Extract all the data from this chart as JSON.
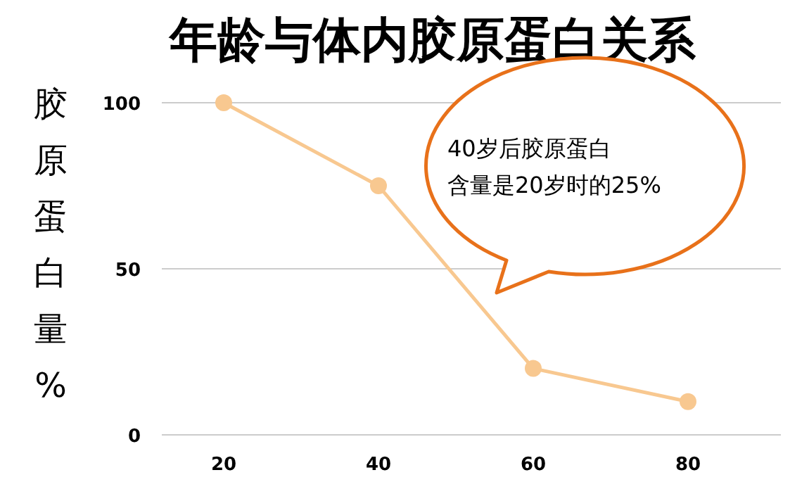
{
  "chart_data": {
    "type": "line",
    "title": "年龄与体内胶原蛋白关系",
    "ylabel": "胶原蛋白量%",
    "x": [
      20,
      40,
      60,
      80
    ],
    "series": [
      {
        "color": "#f8c890",
        "values": [
          100,
          75,
          20,
          10
        ]
      }
    ],
    "xlim": [
      12,
      92
    ],
    "xticks": [
      20,
      40,
      60,
      80
    ],
    "ylim": [
      0,
      100
    ],
    "yticks": [
      0,
      50,
      100
    ],
    "grid": "y",
    "marker": "circle",
    "annotations": [
      "40岁后胶原蛋白含量是20岁时的25%"
    ]
  }
}
